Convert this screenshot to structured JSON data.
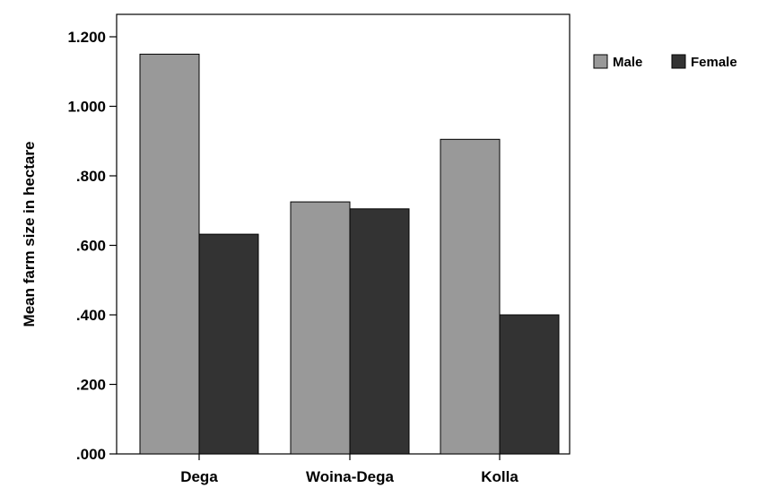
{
  "chart_data": {
    "type": "bar",
    "categories": [
      "Dega",
      "Woina-Dega",
      "Kolla"
    ],
    "series": [
      {
        "name": "Male",
        "values": [
          1.15,
          0.725,
          0.905
        ],
        "color": "#999999"
      },
      {
        "name": "Female",
        "values": [
          0.632,
          0.705,
          0.4
        ],
        "color": "#333333"
      }
    ],
    "ylabel": "Mean farm size in hectare",
    "xlabel": "",
    "ylim": [
      0,
      1.2
    ],
    "yticks": [
      0,
      0.2,
      0.4,
      0.6,
      0.8,
      1.0,
      1.2
    ],
    "ytick_labels": [
      ".000",
      ".200",
      ".400",
      ".600",
      ".800",
      "1.000",
      "1.200"
    ],
    "grid": false,
    "legend_position": "top-right"
  }
}
